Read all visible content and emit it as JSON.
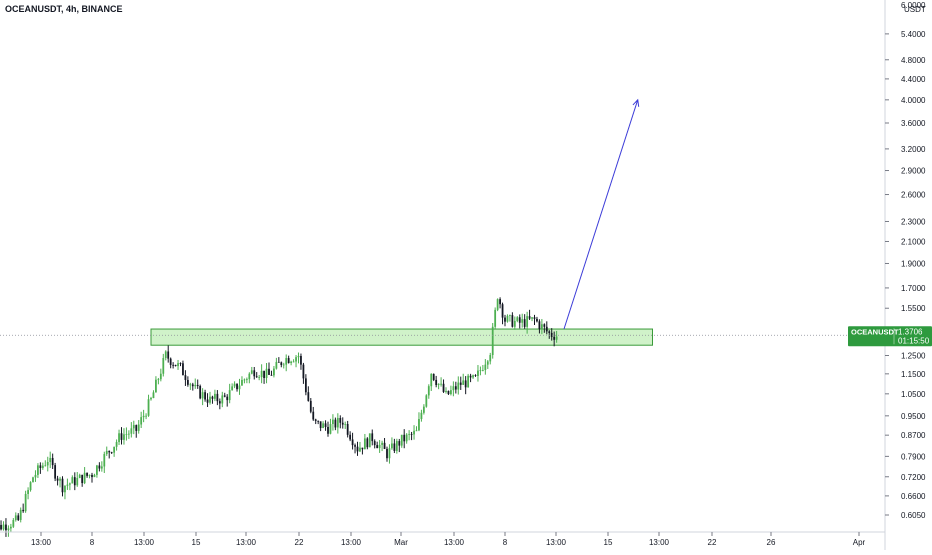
{
  "header": {
    "title": "OCEANUSDT, 4h, BINANCE"
  },
  "price_scale": {
    "currency_label": "USDT",
    "top_partial_label": "6.0000"
  },
  "last_price_badge": {
    "symbol": "OCEANUSDT",
    "price": "1.3706",
    "countdown": "01:15:50"
  },
  "colors": {
    "up": "#26a69a",
    "candle_up": "#4caf50",
    "candle_down": "#131722",
    "zone_fill": "#c8f0c0",
    "zone_stroke": "#3a9a3a",
    "arrow": "#3c3cd8",
    "badge": "#2e9a3e",
    "axis_text": "#131722",
    "gridline": "#e0e3eb"
  },
  "chart_data": {
    "type": "candlestick",
    "symbol": "OCEANUSDT",
    "interval": "4h",
    "exchange": "BINANCE",
    "y_scale": "log",
    "ylim": [
      0.56,
      6.3
    ],
    "y_ticks": [
      "0.6050",
      "0.6600",
      "0.7200",
      "0.7900",
      "0.8700",
      "0.9500",
      "1.0500",
      "1.1500",
      "1.2500",
      "1.3700",
      "1.5500",
      "1.7000",
      "1.9000",
      "2.1000",
      "2.3000",
      "2.6000",
      "2.9000",
      "3.2000",
      "3.6000",
      "4.0000",
      "4.4000",
      "4.8000",
      "5.4000"
    ],
    "x_ticks": [
      "13:00",
      "8",
      "13:00",
      "15",
      "13:00",
      "22",
      "13:00",
      "Mar",
      "13:00",
      "8",
      "13:00",
      "15",
      "13:00",
      "22",
      "26",
      "Apr"
    ],
    "path_keypoints": [
      {
        "date": "2021-02-01",
        "price": 0.565
      },
      {
        "date": "2021-02-03",
        "price": 0.59
      },
      {
        "date": "2021-02-04",
        "price": 0.72
      },
      {
        "date": "2021-02-05",
        "price": 0.78
      },
      {
        "date": "2021-02-06",
        "price": 0.69
      },
      {
        "date": "2021-02-08",
        "price": 0.73
      },
      {
        "date": "2021-02-09",
        "price": 0.8
      },
      {
        "date": "2021-02-10",
        "price": 0.87
      },
      {
        "date": "2021-02-11",
        "price": 0.89
      },
      {
        "date": "2021-02-12",
        "price": 1.02
      },
      {
        "date": "2021-02-13",
        "price": 1.25
      },
      {
        "date": "2021-02-14",
        "price": 1.18
      },
      {
        "date": "2021-02-15",
        "price": 1.07
      },
      {
        "date": "2021-02-16",
        "price": 1.02
      },
      {
        "date": "2021-02-17",
        "price": 1.03
      },
      {
        "date": "2021-02-18",
        "price": 1.1
      },
      {
        "date": "2021-02-19",
        "price": 1.17
      },
      {
        "date": "2021-02-20",
        "price": 1.14
      },
      {
        "date": "2021-02-21",
        "price": 1.23
      },
      {
        "date": "2021-02-22",
        "price": 1.25
      },
      {
        "date": "2021-02-23",
        "price": 0.92
      },
      {
        "date": "2021-02-24",
        "price": 0.9
      },
      {
        "date": "2021-02-25",
        "price": 0.93
      },
      {
        "date": "2021-02-26",
        "price": 0.82
      },
      {
        "date": "2021-02-27",
        "price": 0.86
      },
      {
        "date": "2021-02-28",
        "price": 0.8
      },
      {
        "date": "2021-03-01",
        "price": 0.85
      },
      {
        "date": "2021-03-02",
        "price": 0.88
      },
      {
        "date": "2021-03-03",
        "price": 1.16
      },
      {
        "date": "2021-03-04",
        "price": 1.04
      },
      {
        "date": "2021-03-05",
        "price": 1.1
      },
      {
        "date": "2021-03-06",
        "price": 1.12
      },
      {
        "date": "2021-03-07",
        "price": 1.28
      },
      {
        "date": "2021-03-07T12:00",
        "price": 1.65
      },
      {
        "date": "2021-03-08",
        "price": 1.47
      },
      {
        "date": "2021-03-09",
        "price": 1.45
      },
      {
        "date": "2021-03-10",
        "price": 1.47
      },
      {
        "date": "2021-03-11",
        "price": 1.38
      },
      {
        "date": "2021-03-11T12:00",
        "price": 1.37
      }
    ],
    "annotations": {
      "zone": {
        "start": "2021-02-12",
        "end": "2021-03-18",
        "low": 1.31,
        "high": 1.41
      },
      "arrow": {
        "from": {
          "date": "2021-03-12",
          "price": 1.41
        },
        "to": {
          "date": "2021-03-17",
          "price": 4.0
        }
      }
    },
    "last_price": 1.3706
  }
}
